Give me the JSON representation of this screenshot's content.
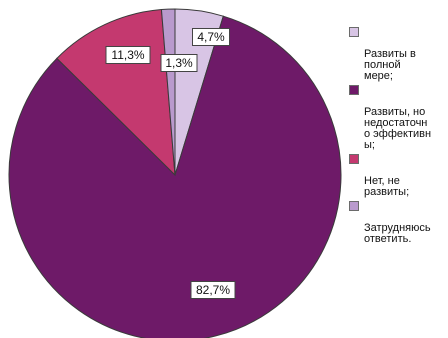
{
  "chart_data": {
    "type": "pie",
    "start_angle_deg": 0,
    "direction": "clockwise",
    "slices": [
      {
        "label": "Развиты в\nполной\nмере;",
        "value": 4.7,
        "display": "4,7%",
        "color": "#D8C5E5"
      },
      {
        "label": "Развиты, но\nнедостаточн\nо эффективн\nы;",
        "value": 82.7,
        "display": "82,7%",
        "color": "#6E1A68"
      },
      {
        "label": "Нет, не\nразвиты;",
        "value": 11.3,
        "display": "11,3%",
        "color": "#C4396F"
      },
      {
        "label": "Затрудняюсь\nответить.",
        "value": 1.3,
        "display": "1,3%",
        "color": "#B99ACD"
      }
    ]
  }
}
